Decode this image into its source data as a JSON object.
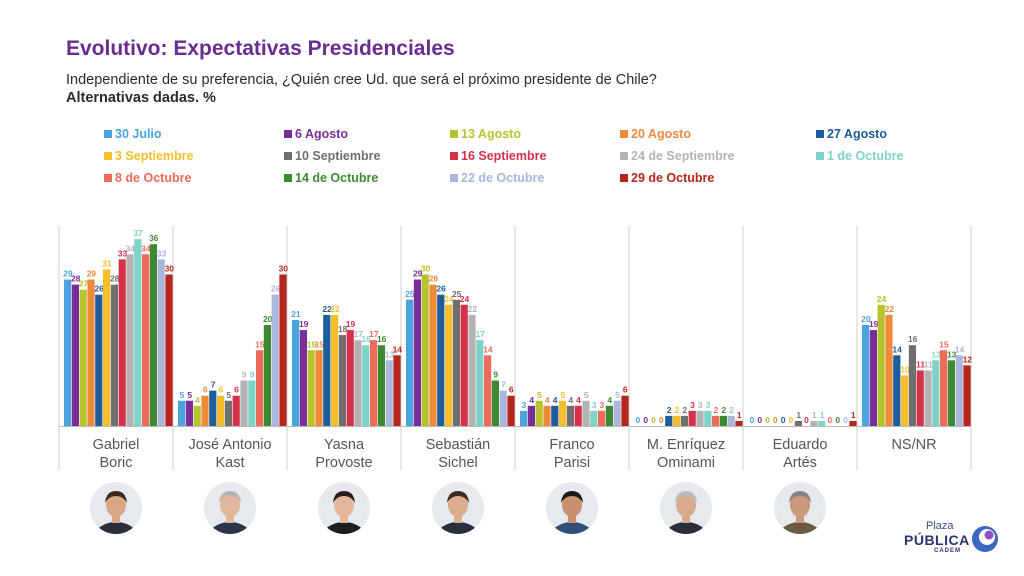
{
  "title": "Evolutivo: Expectativas Presidenciales",
  "subtitle": "Independiente de su preferencia, ¿Quién cree Ud. que será el próximo presidente de Chile?",
  "subtitle2": "Alternativas dadas. %",
  "brand": {
    "line1": "Plaza",
    "line2": "PÚBLICA",
    "line3": "CADEM"
  },
  "chart_data": {
    "type": "bar",
    "title": "Evolutivo: Expectativas Presidenciales",
    "xlabel": "",
    "ylabel": "",
    "ylim": [
      0,
      40
    ],
    "grid": false,
    "legend_position": "top",
    "categories": [
      "Gabriel Boric",
      "José Antonio Kast",
      "Yasna Provoste",
      "Sebastián Sichel",
      "Franco Parisi",
      "M. Enríquez Ominami",
      "Eduardo Artés",
      "NS/NR"
    ],
    "series": [
      {
        "name": "30 Julio",
        "color": "#4aa3df",
        "values": [
          29,
          5,
          21,
          25,
          3,
          0,
          0,
          20
        ]
      },
      {
        "name": "6 Agosto",
        "color": "#7b2d9a",
        "values": [
          28,
          5,
          19,
          29,
          4,
          0,
          0,
          19
        ]
      },
      {
        "name": "13 Agosto",
        "color": "#b5c42c",
        "values": [
          27,
          4,
          15,
          30,
          5,
          0,
          0,
          24
        ]
      },
      {
        "name": "20 Agosto",
        "color": "#ef8a3a",
        "values": [
          29,
          6,
          15,
          28,
          4,
          0,
          0,
          22
        ]
      },
      {
        "name": "27 Agosto",
        "color": "#1d5d9b",
        "values": [
          26,
          7,
          22,
          26,
          4,
          2,
          0,
          14
        ]
      },
      {
        "name": "3 Septiembre",
        "color": "#f5bf2c",
        "values": [
          31,
          6,
          22,
          24,
          5,
          2,
          0,
          10
        ]
      },
      {
        "name": "10 Septiembre",
        "color": "#6f6f6f",
        "values": [
          28,
          5,
          18,
          25,
          4,
          2,
          1,
          16
        ]
      },
      {
        "name": "16 Septiembre",
        "color": "#d6304a",
        "values": [
          33,
          6,
          19,
          24,
          4,
          3,
          0,
          11
        ]
      },
      {
        "name": "24 de Septiembre",
        "color": "#b3b3b3",
        "values": [
          34,
          9,
          17,
          22,
          5,
          3,
          1,
          11
        ]
      },
      {
        "name": "1 de Octubre",
        "color": "#7dd3c7",
        "values": [
          37,
          9,
          16,
          17,
          3,
          3,
          1,
          13
        ]
      },
      {
        "name": "8 de Octubre",
        "color": "#ee6a5b",
        "values": [
          34,
          15,
          17,
          14,
          3,
          2,
          0,
          15
        ]
      },
      {
        "name": "14 de Octubre",
        "color": "#3e8a33",
        "values": [
          36,
          20,
          16,
          9,
          4,
          2,
          0,
          13
        ]
      },
      {
        "name": "22 de Octubre",
        "color": "#a9b7dc",
        "values": [
          33,
          26,
          13,
          7,
          5,
          2,
          0,
          14
        ]
      },
      {
        "name": "29 de Octubre",
        "color": "#b6261c",
        "values": [
          30,
          30,
          14,
          6,
          6,
          1,
          1,
          12
        ]
      }
    ]
  },
  "legend_order": [
    [
      "30 Julio",
      "6 Agosto",
      "13 Agosto",
      "20 Agosto",
      "27 Agosto"
    ],
    [
      "3 Septiembre",
      "10 Septiembre",
      "16 Septiembre",
      "24 de Septiembre",
      "1 de Octubre"
    ],
    [
      "8 de Octubre",
      "14 de Octubre",
      "22 de Octubre",
      "29 de Octubre"
    ]
  ],
  "category_labels": [
    [
      "Gabriel",
      "Boric"
    ],
    [
      "José Antonio",
      "Kast"
    ],
    [
      "Yasna",
      "Provoste"
    ],
    [
      "Sebastián",
      "Sichel"
    ],
    [
      "Franco",
      "Parisi"
    ],
    [
      "M. Enríquez",
      "Ominami"
    ],
    [
      "Eduardo",
      "Artés"
    ],
    [
      "NS/NR"
    ]
  ],
  "avatars": [
    {
      "skin": "#d9a784",
      "hair": "#3b2a20",
      "shirt": "#2a2e3a"
    },
    {
      "skin": "#e2b69a",
      "hair": "#b9b4ad",
      "shirt": "#2c3548"
    },
    {
      "skin": "#e4b79b",
      "hair": "#2a1f1a",
      "shirt": "#1e1e22"
    },
    {
      "skin": "#dcad8e",
      "hair": "#3a2c22",
      "shirt": "#2a2f3e"
    },
    {
      "skin": "#c9926e",
      "hair": "#1f1915",
      "shirt": "#2f4f7a"
    },
    {
      "skin": "#d9ab8d",
      "hair": "#bdbab6",
      "shirt": "#2b2f3b"
    },
    {
      "skin": "#c99b7c",
      "hair": "#8a847c",
      "shirt": "#6a5a44"
    }
  ]
}
